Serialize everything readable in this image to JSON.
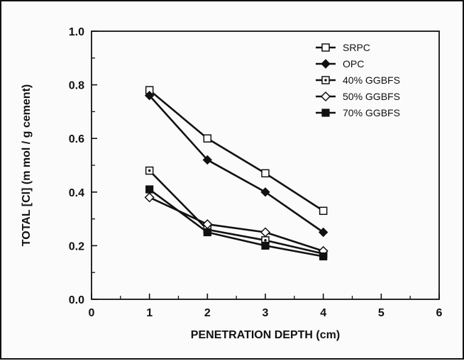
{
  "chart_data": {
    "type": "line",
    "title": "",
    "xlabel": "PENETRATION DEPTH  (cm)",
    "ylabel": "TOTAL [Cl]   (m mol / g cement)",
    "xlim": [
      0,
      6
    ],
    "ylim": [
      0.0,
      1.0
    ],
    "x_ticks": [
      "0",
      "1",
      "2",
      "3",
      "4",
      "5",
      "6"
    ],
    "y_ticks": [
      "0.0",
      "0.2",
      "0.4",
      "0.6",
      "0.8",
      "1.0"
    ],
    "legend_position": "top-right",
    "grid": false,
    "x": [
      1,
      2,
      3,
      4
    ],
    "series": [
      {
        "name": "SRPC",
        "marker": "open-square",
        "values": [
          0.78,
          0.6,
          0.47,
          0.33
        ]
      },
      {
        "name": "OPC",
        "marker": "filled-diamond",
        "values": [
          0.76,
          0.52,
          0.4,
          0.25
        ]
      },
      {
        "name": "40% GGBFS",
        "marker": "square-with-dot",
        "values": [
          0.48,
          0.26,
          0.22,
          0.17
        ]
      },
      {
        "name": "50% GGBFS",
        "marker": "open-diamond",
        "values": [
          0.38,
          0.28,
          0.25,
          0.18
        ]
      },
      {
        "name": "70% GGBFS",
        "marker": "filled-square",
        "values": [
          0.41,
          0.25,
          0.2,
          0.16
        ]
      }
    ],
    "colors": {
      "line": "#111111",
      "background": "#fbfbfb"
    }
  }
}
